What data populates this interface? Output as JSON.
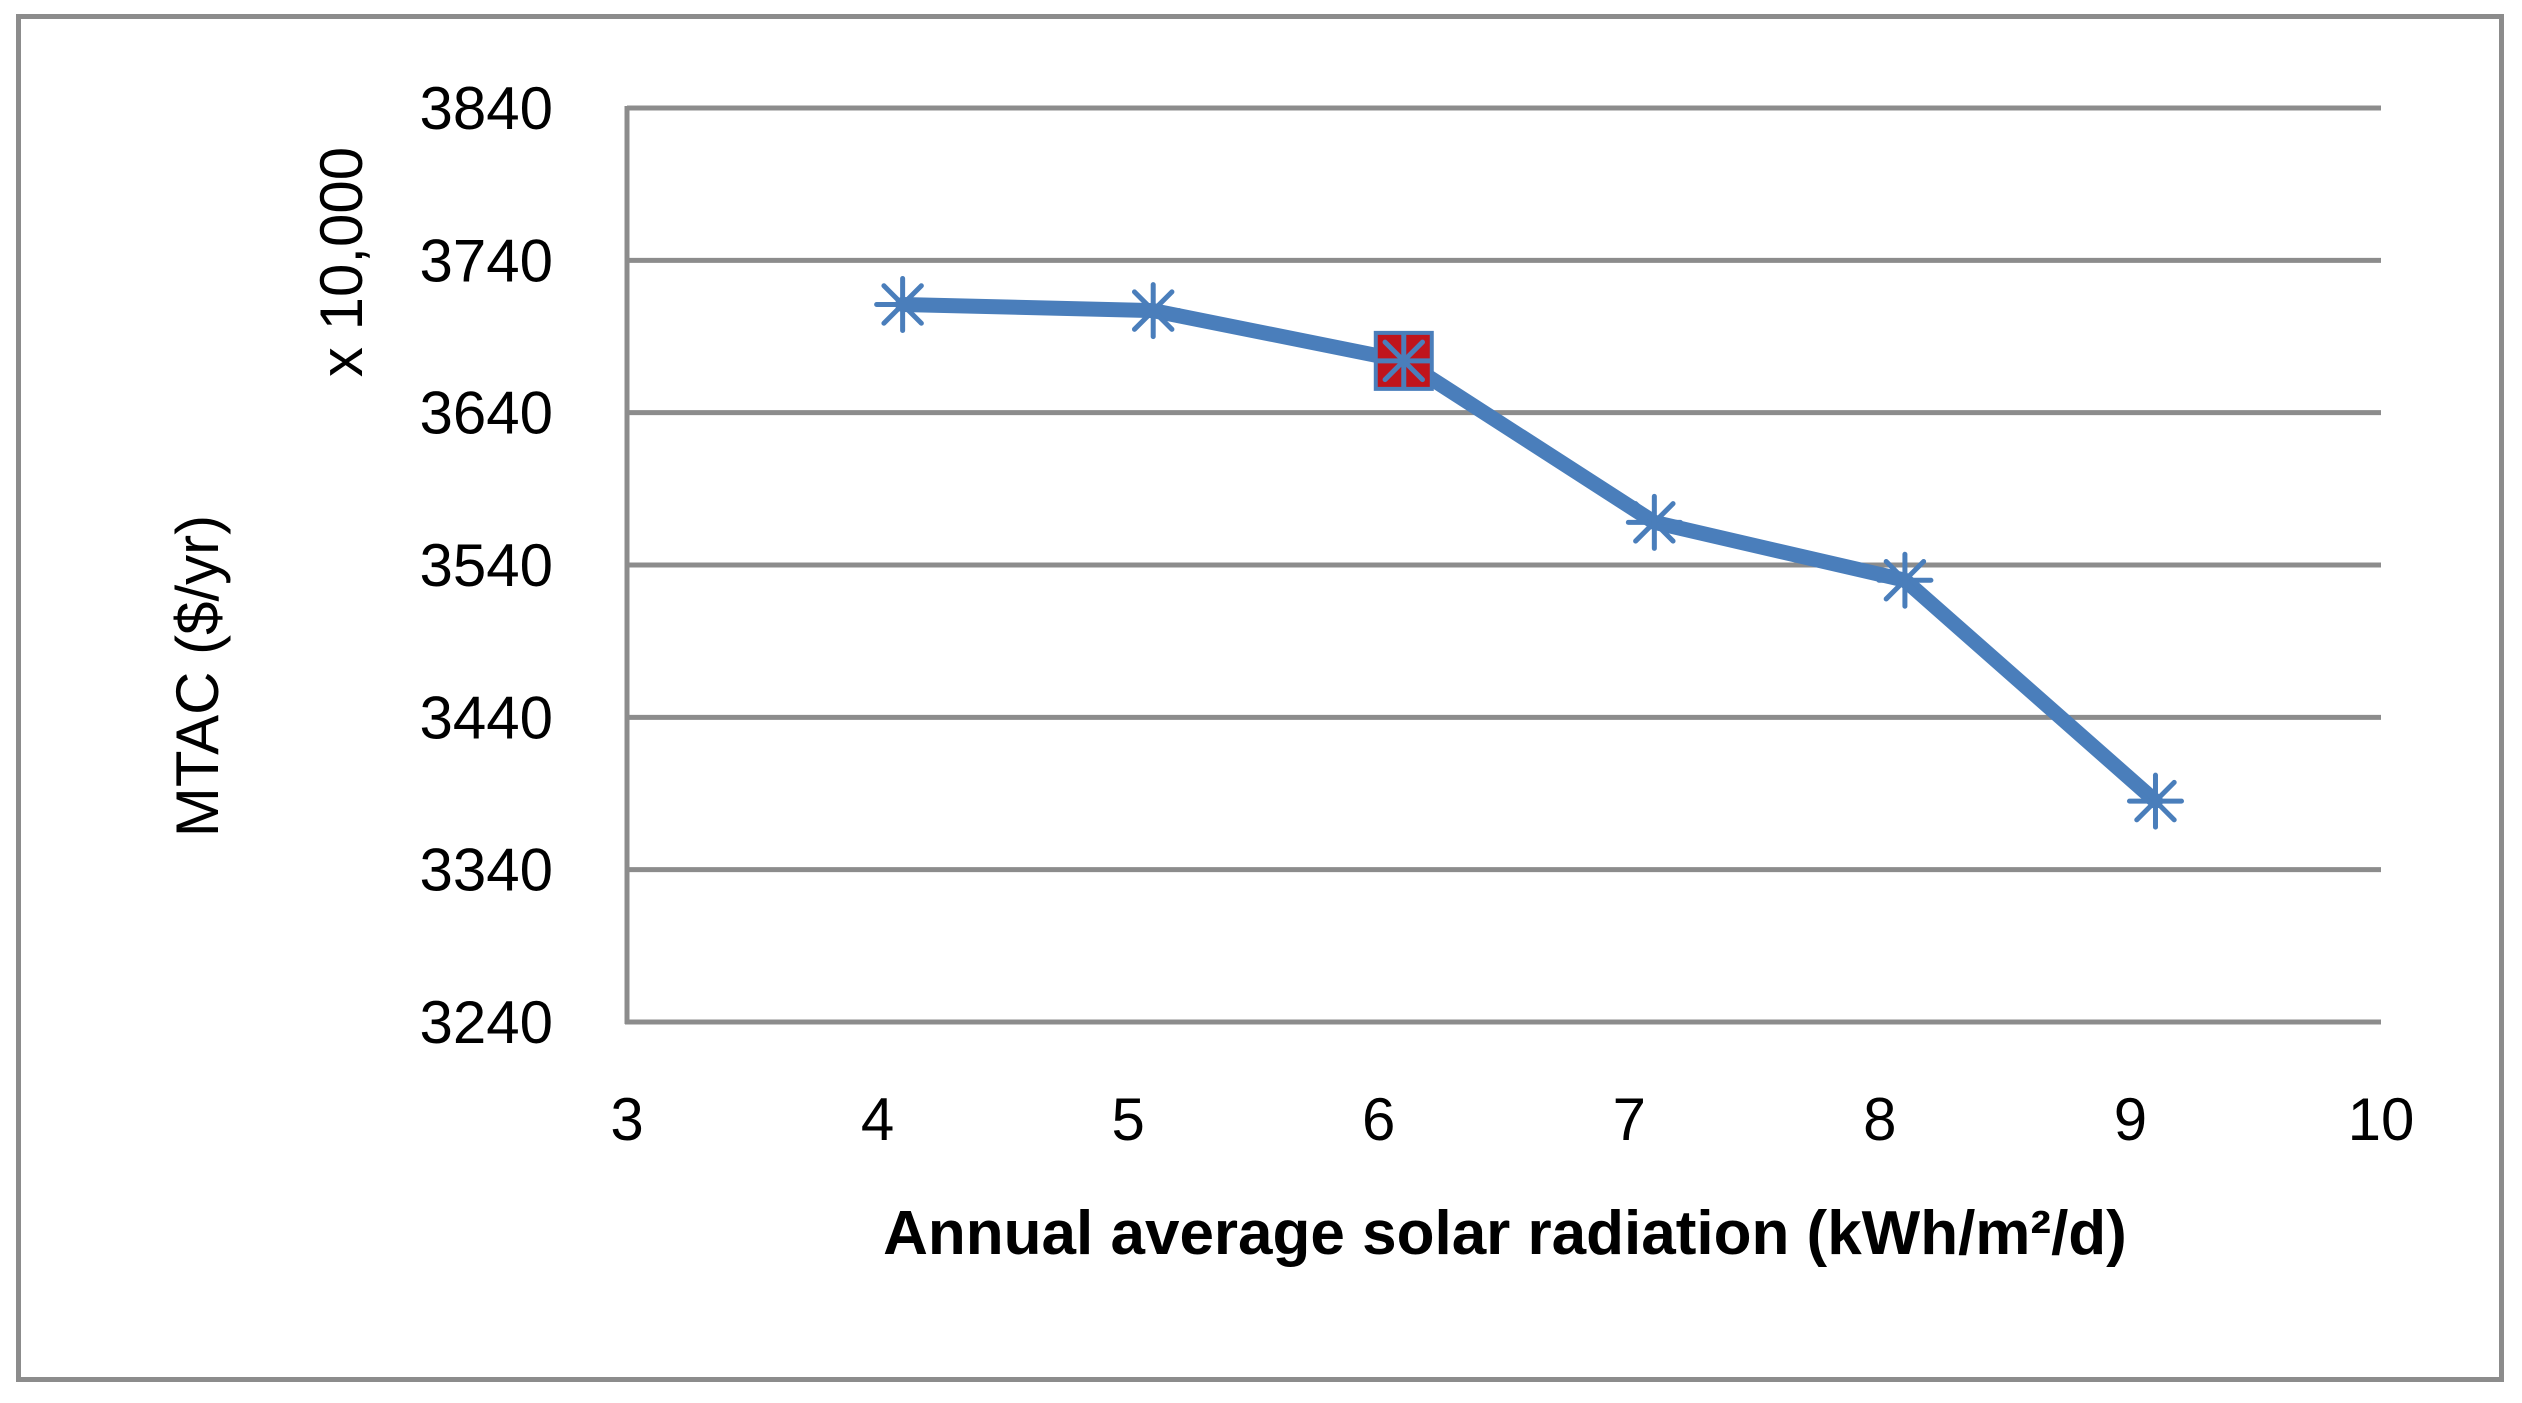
{
  "chart_data": {
    "type": "line",
    "title": "",
    "xlabel": "Annual average solar radiation (kWh/m²/d)",
    "ylabel": "MTAC ($/yr)",
    "y_multiplier_label": "x 10,000",
    "xlim": [
      3,
      10
    ],
    "ylim": [
      3240,
      3840
    ],
    "x_ticks": [
      3,
      4,
      5,
      6,
      7,
      8,
      9,
      10
    ],
    "y_ticks": [
      3240,
      3340,
      3440,
      3540,
      3640,
      3740,
      3840
    ],
    "grid": true,
    "legend": "none",
    "series": [
      {
        "name": "MTAC",
        "x": [
          4.1,
          5.1,
          6.1,
          7.1,
          8.1,
          9.1
        ],
        "values": [
          3711,
          3707,
          3674,
          3568,
          3530,
          3385
        ],
        "color": "#4a7ebb",
        "marker": "asterisk"
      }
    ],
    "highlighted_point": {
      "x": 6.1,
      "value": 3674,
      "fill_color": "#c0141c"
    }
  }
}
